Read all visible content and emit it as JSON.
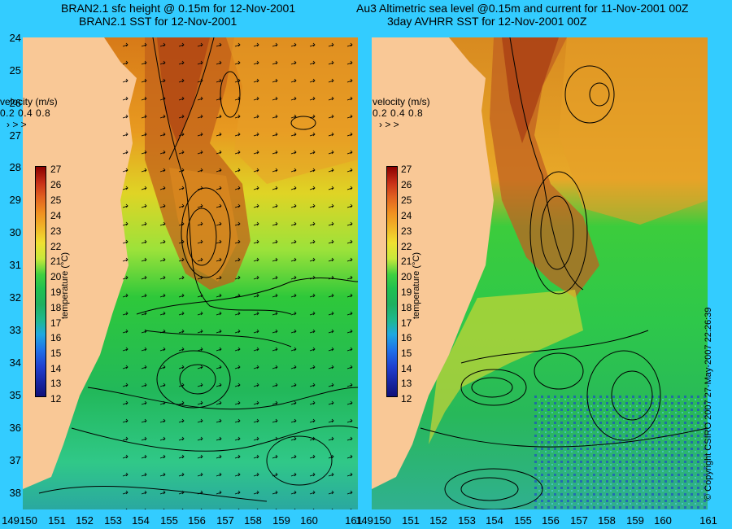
{
  "titles": {
    "left_line1": "BRAN2.1 sfc height @ 0.15m for 12-Nov-2001",
    "left_line2": "BRAN2.1 SST for 12-Nov-2001",
    "right_line1": "Au3 Altimetric sea level  @0.15m and current for 11-Nov-2001 00Z",
    "right_line2": "3day AVHRR SST for 12-Nov-2001 00Z"
  },
  "y_axis": [
    "24",
    "25",
    "26",
    "27",
    "28",
    "29",
    "30",
    "31",
    "32",
    "33",
    "34",
    "35",
    "36",
    "37",
    "38"
  ],
  "x_axis": [
    "149",
    "150",
    "151",
    "152",
    "153",
    "154",
    "155",
    "156",
    "157",
    "158",
    "159",
    "160",
    "161"
  ],
  "velocity_legend": {
    "title": "velocity (m/s)",
    "values": "0.2 0.4 0.8",
    "arrows": "› > >"
  },
  "colorbar": {
    "labels": [
      "27",
      "26",
      "25",
      "24",
      "23",
      "22",
      "21",
      "20",
      "19",
      "18",
      "17",
      "16",
      "15",
      "14",
      "13",
      "12"
    ],
    "title": "temperature (°C)"
  },
  "copyright": "© Copyright CSIRO 2007  27-May-2007 22:26:39",
  "colors": {
    "background": "#33ccff",
    "land": "#f9c896"
  }
}
